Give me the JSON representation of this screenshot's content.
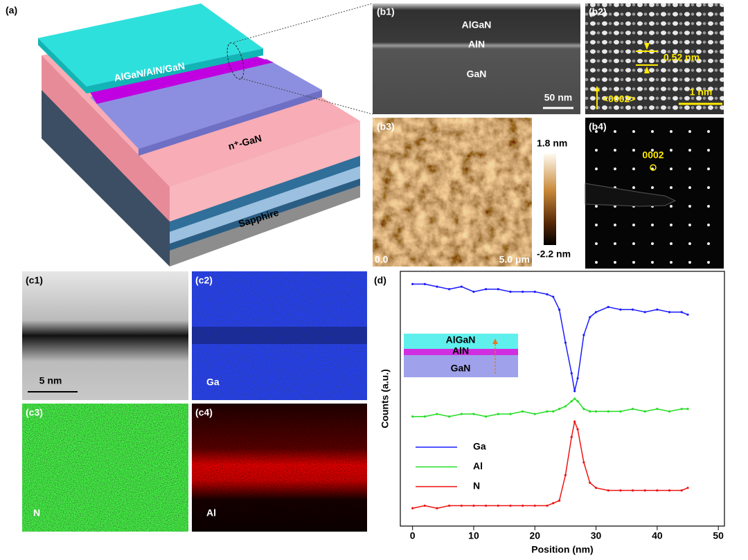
{
  "figure": {
    "a": {
      "label": "(a)",
      "stack": "AlGaN/AlN/GaN",
      "n_layer": "n⁺-GaN",
      "substrate": "Sapphire"
    },
    "b1": {
      "label": "(b1)",
      "layers": [
        "AlGaN",
        "AlN",
        "GaN"
      ],
      "scale": "50 nm"
    },
    "b2": {
      "label": "(b2)",
      "spacing": "0.52 nm",
      "direction": "<0002>",
      "scale": "1 nm"
    },
    "b3": {
      "label": "(b3)",
      "color_max": "1.8 nm",
      "color_min": "-2.2 nm",
      "x_start": "0.0",
      "x_end": "5.0 μm"
    },
    "b4": {
      "label": "(b4)",
      "spot": "0002"
    },
    "c1": {
      "label": "(c1)",
      "scale": "5 nm"
    },
    "c2": {
      "label": "(c2)",
      "element": "Ga"
    },
    "c3": {
      "label": "(c3)",
      "element": "N"
    },
    "c4": {
      "label": "(c4)",
      "element": "Al"
    }
  },
  "chart_data": {
    "type": "line",
    "label": "(d)",
    "xlabel": "Position (nm)",
    "ylabel": "Counts (a.u.)",
    "inset_layers": [
      "AlGaN",
      "AlN",
      "GaN"
    ],
    "x": [
      0,
      2,
      4,
      6,
      8,
      10,
      12,
      14,
      16,
      18,
      20,
      22,
      23,
      24,
      25,
      26,
      26.5,
      27,
      28,
      29,
      30,
      32,
      34,
      36,
      38,
      40,
      42,
      44,
      45
    ],
    "series": [
      {
        "name": "Ga",
        "color": "#1a1aff",
        "values": [
          95,
          95,
          94,
          93,
          94,
          92,
          93,
          93,
          92,
          92,
          92,
          91,
          90,
          85,
          72,
          60,
          53,
          58,
          75,
          82,
          84,
          86,
          85,
          85,
          84,
          85,
          84,
          84,
          83
        ]
      },
      {
        "name": "Al",
        "color": "#22dd22",
        "values": [
          43,
          43,
          44,
          43,
          44,
          44,
          43,
          44,
          44,
          45,
          44,
          45,
          45,
          46,
          47,
          49,
          50,
          49,
          46,
          45,
          45,
          45,
          45,
          46,
          45,
          46,
          45,
          46,
          46
        ]
      },
      {
        "name": "N",
        "color": "#ee1111",
        "values": [
          7,
          8,
          7,
          8,
          8,
          8,
          8,
          8,
          8,
          8,
          8,
          8,
          9,
          10,
          20,
          35,
          41,
          38,
          25,
          17,
          15,
          14,
          14,
          14,
          14,
          14,
          14,
          14,
          15
        ]
      }
    ],
    "xlim": [
      -2,
      51
    ],
    "ylim": [
      0,
      100
    ],
    "xticks": [
      0,
      10,
      20,
      30,
      40,
      50
    ],
    "legend": "lower left"
  }
}
